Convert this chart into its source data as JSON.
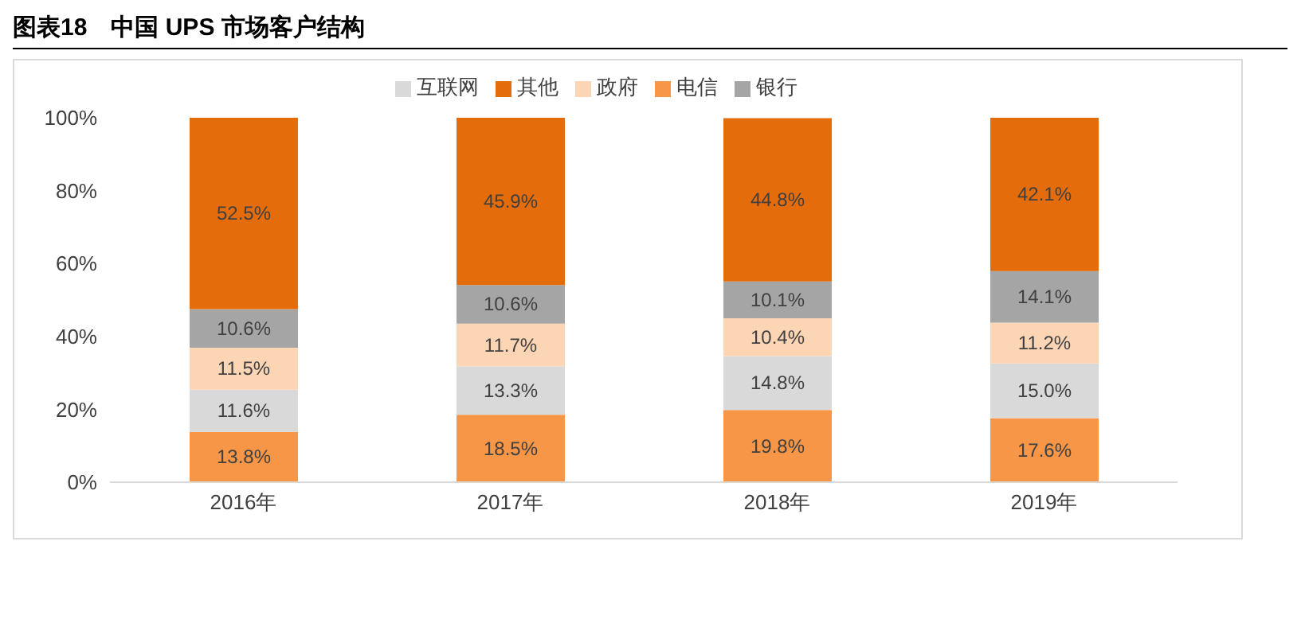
{
  "chart_data": {
    "type": "bar",
    "title": "图表18　中国 UPS 市场客户结构",
    "stacked": true,
    "categories": [
      "2016年",
      "2017年",
      "2018年",
      "2019年"
    ],
    "series": [
      {
        "name": "电信",
        "color": "#f79646",
        "values": [
          13.8,
          18.5,
          19.8,
          17.6
        ],
        "value_labels": [
          "13.8%",
          "18.5%",
          "19.8%",
          "17.6%"
        ]
      },
      {
        "name": "互联网",
        "color": "#d9d9d9",
        "values": [
          11.6,
          13.3,
          14.8,
          15.0
        ],
        "value_labels": [
          "11.6%",
          "13.3%",
          "14.8%",
          "15.0%"
        ]
      },
      {
        "name": "政府",
        "color": "#fcd5b4",
        "values": [
          11.5,
          11.7,
          10.4,
          11.2
        ],
        "value_labels": [
          "11.5%",
          "11.7%",
          "10.4%",
          "11.2%"
        ]
      },
      {
        "name": "银行",
        "color": "#a5a5a5",
        "values": [
          10.6,
          10.6,
          10.1,
          14.1
        ],
        "value_labels": [
          "10.6%",
          "10.6%",
          "10.1%",
          "14.1%"
        ]
      },
      {
        "name": "其他",
        "color": "#e46c0a",
        "values": [
          52.5,
          45.9,
          44.8,
          42.1
        ],
        "value_labels": [
          "52.5%",
          "45.9%",
          "44.8%",
          "42.1%"
        ]
      }
    ],
    "ylim": [
      0,
      100
    ],
    "yticks": [
      {
        "value": 0,
        "label": "0%"
      },
      {
        "value": 20,
        "label": "20%"
      },
      {
        "value": 40,
        "label": "40%"
      },
      {
        "value": 60,
        "label": "60%"
      },
      {
        "value": 80,
        "label": "80%"
      },
      {
        "value": 100,
        "label": "100%"
      }
    ],
    "legend": "top",
    "grid": false
  }
}
